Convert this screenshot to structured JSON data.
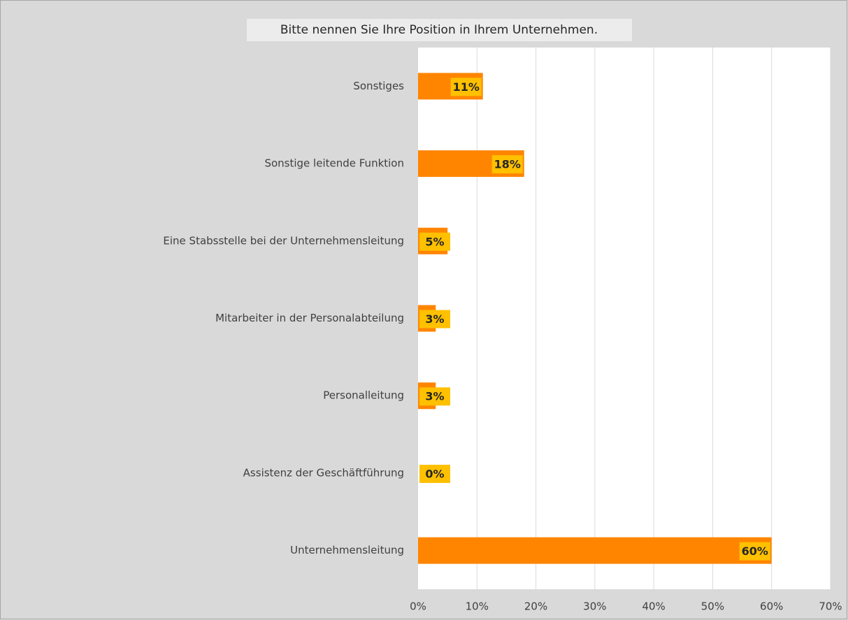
{
  "chart_data": {
    "type": "barh",
    "title": "Bitte nennen Sie Ihre Position in Ihrem Unternehmen.",
    "categories": [
      "Sonstiges",
      "Sonstige leitende Funktion",
      "Eine Stabsstelle bei der Unternehmensleitung",
      "Mitarbeiter in der Personalabteilung",
      "Personalleitung",
      "Assistenz der Geschäftführung",
      "Unternehmensleitung"
    ],
    "values": [
      11,
      18,
      5,
      3,
      3,
      0,
      60
    ],
    "value_labels": [
      "11%",
      "18%",
      "5%",
      "3%",
      "3%",
      "0%",
      "60%"
    ],
    "color": "#ff8500",
    "label_color": "#ffc000",
    "xlim": [
      0,
      70
    ],
    "xticks": [
      {
        "value": 0,
        "label": "0%"
      },
      {
        "value": 10,
        "label": "10%"
      },
      {
        "value": 20,
        "label": "20%"
      },
      {
        "value": 30,
        "label": "30%"
      },
      {
        "value": 40,
        "label": "40%"
      },
      {
        "value": 50,
        "label": "50%"
      },
      {
        "value": 60,
        "label": "60%"
      },
      {
        "value": 70,
        "label": "70%"
      }
    ],
    "grid": true
  }
}
